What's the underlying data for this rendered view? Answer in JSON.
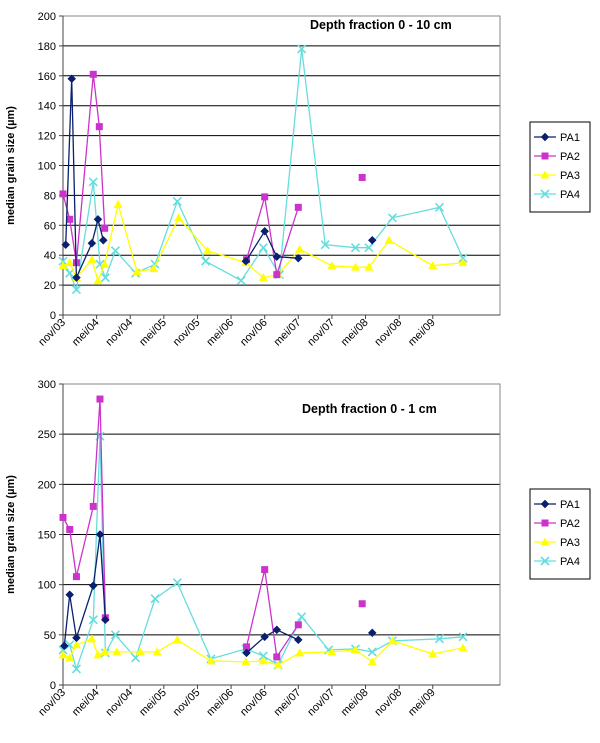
{
  "chart_data": [
    {
      "type": "line",
      "title": "Depth fraction  0 - 10 cm",
      "ylabel": "median grain size (µm)",
      "xlabel": "",
      "ylim": [
        0,
        200
      ],
      "yticks": [
        0,
        20,
        40,
        60,
        80,
        100,
        120,
        140,
        160,
        180,
        200
      ],
      "xlim": [
        0,
        6.5
      ],
      "xticks": [
        {
          "label": "nov/03",
          "x": 0.0
        },
        {
          "label": "mei/04",
          "x": 0.5
        },
        {
          "label": "nov/04",
          "x": 1.0
        },
        {
          "label": "mei/05",
          "x": 1.5
        },
        {
          "label": "nov/05",
          "x": 2.0
        },
        {
          "label": "mei/06",
          "x": 2.5
        },
        {
          "label": "nov/06",
          "x": 3.0
        },
        {
          "label": "mei/07",
          "x": 3.5
        },
        {
          "label": "nov/07",
          "x": 4.0
        },
        {
          "label": "mei/08",
          "x": 4.5
        },
        {
          "label": "nov/08",
          "x": 5.0
        },
        {
          "label": "mei/09",
          "x": 5.5
        }
      ],
      "legend": "right",
      "series": [
        {
          "name": "PA1",
          "color": "#0a1f6e",
          "marker": "diamond",
          "connect": true,
          "points": [
            [
              0.04,
              47
            ],
            [
              0.13,
              158
            ],
            [
              0.2,
              25
            ],
            [
              0.43,
              48
            ],
            [
              0.52,
              64
            ],
            [
              0.6,
              50
            ]
          ]
        },
        {
          "name": "PA1",
          "color": "#0a1f6e",
          "marker": "diamond",
          "connect": true,
          "points": [
            [
              2.72,
              36
            ],
            [
              3.0,
              56
            ],
            [
              3.18,
              39
            ],
            [
              3.5,
              38
            ]
          ]
        },
        {
          "name": "PA1",
          "color": "#0a1f6e",
          "marker": "diamond",
          "connect": false,
          "points": [
            [
              4.6,
              50
            ]
          ]
        },
        {
          "name": "PA2",
          "color": "#cc33cc",
          "marker": "square",
          "connect": true,
          "points": [
            [
              0.0,
              81
            ],
            [
              0.1,
              64
            ],
            [
              0.2,
              35
            ],
            [
              0.45,
              161
            ],
            [
              0.54,
              126
            ],
            [
              0.62,
              58
            ]
          ]
        },
        {
          "name": "PA2",
          "color": "#cc33cc",
          "marker": "square",
          "connect": true,
          "points": [
            [
              2.73,
              37
            ],
            [
              3.0,
              79
            ],
            [
              3.18,
              27
            ],
            [
              3.5,
              72
            ]
          ]
        },
        {
          "name": "PA2",
          "color": "#cc33cc",
          "marker": "square",
          "connect": false,
          "points": [
            [
              4.45,
              92
            ]
          ]
        },
        {
          "name": "PA3",
          "color": "#ffff00",
          "marker": "triangle",
          "connect": true,
          "points": [
            [
              0.0,
              33
            ],
            [
              0.1,
              35
            ],
            [
              0.2,
              25
            ],
            [
              0.43,
              37
            ],
            [
              0.52,
              23
            ],
            [
              0.62,
              34
            ],
            [
              0.82,
              74
            ],
            [
              1.1,
              29
            ],
            [
              1.35,
              31
            ],
            [
              1.72,
              65
            ],
            [
              2.15,
              43
            ],
            [
              2.72,
              35
            ],
            [
              2.98,
              25
            ],
            [
              3.2,
              27
            ],
            [
              3.52,
              44
            ],
            [
              4.0,
              33
            ],
            [
              4.35,
              32
            ],
            [
              4.55,
              32
            ],
            [
              4.85,
              50
            ],
            [
              5.5,
              33
            ],
            [
              5.95,
              35
            ]
          ]
        },
        {
          "name": "PA4",
          "color": "#66dddd",
          "marker": "cross",
          "connect": true,
          "points": [
            [
              0.0,
              36
            ],
            [
              0.1,
              28
            ],
            [
              0.2,
              17
            ],
            [
              0.45,
              89
            ],
            [
              0.55,
              34
            ],
            [
              0.63,
              25
            ],
            [
              0.78,
              43
            ],
            [
              1.08,
              28
            ],
            [
              1.37,
              34
            ],
            [
              1.7,
              76
            ],
            [
              2.12,
              36
            ],
            [
              2.65,
              23
            ],
            [
              2.98,
              45
            ],
            [
              3.22,
              27
            ],
            [
              3.55,
              178
            ],
            [
              3.9,
              47
            ],
            [
              4.35,
              45
            ],
            [
              4.55,
              45
            ],
            [
              4.9,
              65
            ],
            [
              5.6,
              72
            ],
            [
              5.95,
              38
            ]
          ]
        }
      ]
    },
    {
      "type": "line",
      "title": "Depth fraction  0 - 1 cm",
      "ylabel": "median grain size (µm)",
      "xlabel": "",
      "ylim": [
        0,
        300
      ],
      "yticks": [
        0,
        50,
        100,
        150,
        200,
        250,
        300
      ],
      "xlim": [
        0,
        6.5
      ],
      "xticks": [
        {
          "label": "nov/03",
          "x": 0.0
        },
        {
          "label": "mei/04",
          "x": 0.5
        },
        {
          "label": "nov/04",
          "x": 1.0
        },
        {
          "label": "mei/05",
          "x": 1.5
        },
        {
          "label": "nov/05",
          "x": 2.0
        },
        {
          "label": "mei/06",
          "x": 2.5
        },
        {
          "label": "nov/06",
          "x": 3.0
        },
        {
          "label": "mei/07",
          "x": 3.5
        },
        {
          "label": "nov/07",
          "x": 4.0
        },
        {
          "label": "mei/08",
          "x": 4.5
        },
        {
          "label": "nov/08",
          "x": 5.0
        },
        {
          "label": "mei/09",
          "x": 5.5
        }
      ],
      "legend": "right",
      "series": [
        {
          "name": "PA1",
          "color": "#0a1f6e",
          "marker": "diamond",
          "connect": true,
          "points": [
            [
              0.02,
              39
            ],
            [
              0.1,
              90
            ],
            [
              0.2,
              47
            ],
            [
              0.45,
              99
            ],
            [
              0.55,
              150
            ],
            [
              0.63,
              65
            ]
          ]
        },
        {
          "name": "PA1",
          "color": "#0a1f6e",
          "marker": "diamond",
          "connect": true,
          "points": [
            [
              2.73,
              32
            ],
            [
              3.0,
              48
            ],
            [
              3.18,
              55
            ],
            [
              3.5,
              45
            ]
          ]
        },
        {
          "name": "PA1",
          "color": "#0a1f6e",
          "marker": "diamond",
          "connect": false,
          "points": [
            [
              4.6,
              52
            ]
          ]
        },
        {
          "name": "PA2",
          "color": "#cc33cc",
          "marker": "square",
          "connect": true,
          "points": [
            [
              0.0,
              167
            ],
            [
              0.1,
              155
            ],
            [
              0.2,
              108
            ],
            [
              0.45,
              178
            ],
            [
              0.55,
              285
            ],
            [
              0.63,
              67
            ]
          ]
        },
        {
          "name": "PA2",
          "color": "#cc33cc",
          "marker": "square",
          "connect": true,
          "points": [
            [
              2.73,
              38
            ],
            [
              3.0,
              115
            ],
            [
              3.18,
              28
            ],
            [
              3.5,
              60
            ]
          ]
        },
        {
          "name": "PA2",
          "color": "#cc33cc",
          "marker": "square",
          "connect": false,
          "points": [
            [
              4.45,
              81
            ]
          ]
        },
        {
          "name": "PA3",
          "color": "#ffff00",
          "marker": "triangle",
          "connect": true,
          "points": [
            [
              0.0,
              30
            ],
            [
              0.1,
              27
            ],
            [
              0.2,
              40
            ],
            [
              0.43,
              46
            ],
            [
              0.52,
              30
            ],
            [
              0.62,
              33
            ],
            [
              0.8,
              33
            ],
            [
              1.15,
              33
            ],
            [
              1.4,
              33
            ],
            [
              1.7,
              45
            ],
            [
              2.2,
              24
            ],
            [
              2.72,
              23
            ],
            [
              2.98,
              24
            ],
            [
              3.2,
              20
            ],
            [
              3.52,
              32
            ],
            [
              4.0,
              33
            ],
            [
              4.35,
              35
            ],
            [
              4.6,
              23
            ],
            [
              4.9,
              44
            ],
            [
              5.5,
              31
            ],
            [
              5.95,
              37
            ]
          ]
        },
        {
          "name": "PA4",
          "color": "#66dddd",
          "marker": "cross",
          "connect": true,
          "points": [
            [
              0.0,
              35
            ],
            [
              0.1,
              40
            ],
            [
              0.2,
              16
            ],
            [
              0.45,
              65
            ],
            [
              0.55,
              248
            ],
            [
              0.63,
              32
            ],
            [
              0.78,
              50
            ],
            [
              1.08,
              27
            ],
            [
              1.37,
              86
            ],
            [
              1.7,
              102
            ],
            [
              2.2,
              26
            ],
            [
              2.72,
              36
            ],
            [
              2.98,
              29
            ],
            [
              3.2,
              20
            ],
            [
              3.55,
              68
            ],
            [
              3.95,
              35
            ],
            [
              4.35,
              36
            ],
            [
              4.6,
              33
            ],
            [
              4.9,
              44
            ],
            [
              5.6,
              46
            ],
            [
              5.95,
              48
            ]
          ]
        }
      ]
    }
  ]
}
